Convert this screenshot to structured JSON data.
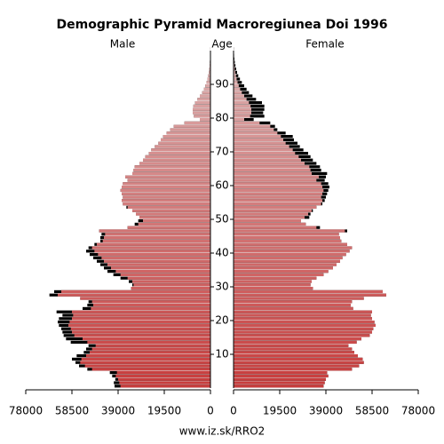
{
  "chart_data": {
    "type": "pyramid",
    "title": "Demographic Pyramid Macroregiunea Doi 1996",
    "y_label": "Age",
    "source": "www.iz.sk/RRO2",
    "ages": [
      0,
      1,
      2,
      3,
      4,
      5,
      6,
      7,
      8,
      9,
      10,
      11,
      12,
      13,
      14,
      15,
      16,
      17,
      18,
      19,
      20,
      21,
      22,
      23,
      24,
      25,
      26,
      27,
      28,
      29,
      30,
      31,
      32,
      33,
      34,
      35,
      36,
      37,
      38,
      39,
      40,
      41,
      42,
      43,
      44,
      45,
      46,
      47,
      48,
      49,
      50,
      51,
      52,
      53,
      54,
      55,
      56,
      57,
      58,
      59,
      60,
      61,
      62,
      63,
      64,
      65,
      66,
      67,
      68,
      69,
      70,
      71,
      72,
      73,
      74,
      75,
      76,
      77,
      78,
      79,
      80,
      81,
      82,
      83,
      84,
      85,
      86,
      87,
      88,
      89,
      90,
      91,
      92,
      93,
      94,
      95,
      96,
      97,
      98,
      99,
      100
    ],
    "series": [
      {
        "name": "Male",
        "values": [
          40500,
          40800,
          40200,
          41500,
          42500,
          52000,
          55500,
          57000,
          58500,
          56500,
          53500,
          52500,
          51500,
          59000,
          61000,
          62000,
          62500,
          63000,
          64000,
          64500,
          64000,
          62500,
          65000,
          54000,
          52000,
          51500,
          55000,
          68000,
          66000,
          33500,
          33000,
          34500,
          38000,
          41000,
          43500,
          45000,
          46500,
          48000,
          49500,
          51000,
          52500,
          51500,
          49000,
          46500,
          46500,
          46000,
          47000,
          35000,
          32000,
          30500,
          30000,
          31500,
          33000,
          35500,
          37000,
          37500,
          37000,
          37500,
          38000,
          37500,
          37000,
          35000,
          36000,
          33000,
          32500,
          32000,
          30000,
          28500,
          27500,
          26000,
          25000,
          23500,
          22000,
          21000,
          20000,
          18500,
          17000,
          15500,
          11000,
          4500,
          7000,
          7500,
          7500,
          7200,
          6500,
          5500,
          4500,
          3500,
          2800,
          2200,
          1700,
          1300,
          1000,
          700,
          500,
          350,
          250,
          150,
          100,
          60,
          40
        ]
      },
      {
        "name": "Female",
        "values": [
          38000,
          38500,
          39000,
          40000,
          39500,
          50000,
          53000,
          55000,
          54500,
          52500,
          51000,
          50000,
          48500,
          52000,
          54000,
          57500,
          58500,
          59000,
          60000,
          59500,
          58500,
          58000,
          58500,
          50500,
          49500,
          50000,
          55000,
          64500,
          63000,
          33500,
          32500,
          33000,
          35000,
          38000,
          40000,
          42000,
          43500,
          45000,
          46000,
          47500,
          49000,
          50000,
          48000,
          45500,
          45000,
          44500,
          48000,
          36500,
          30500,
          28500,
          32000,
          32500,
          33500,
          35000,
          37500,
          38500,
          39000,
          39500,
          40000,
          40500,
          40000,
          38500,
          39000,
          39500,
          37000,
          36500,
          35000,
          33500,
          32500,
          31500,
          29500,
          28000,
          27000,
          25500,
          25000,
          22000,
          18500,
          17500,
          15500,
          8500,
          13000,
          12500,
          13000,
          13000,
          12000,
          9500,
          8000,
          6500,
          5500,
          4500,
          3500,
          2700,
          2000,
          1500,
          1100,
          800,
          550,
          350,
          220,
          140,
          80
        ]
      }
    ],
    "xlim": [
      0,
      78000
    ],
    "xticks": [
      0,
      19500,
      39000,
      58500,
      78000
    ],
    "ylim": [
      0,
      100
    ],
    "yticks": [
      10,
      20,
      30,
      40,
      50,
      60,
      70,
      80,
      90
    ],
    "color_young": "#c83c3c",
    "color_old": "#dcb4b4",
    "excess_color": "#000000"
  }
}
